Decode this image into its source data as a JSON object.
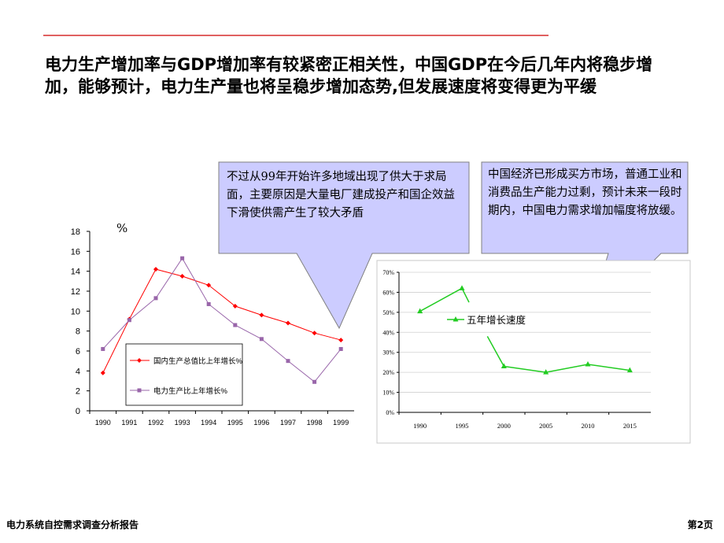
{
  "headline": "电力生产增加率与GDP增加率有较紧密正相关性，中国GDP在今后几年内将稳步增加，能够预计，电力生产量也将呈稳步增加态势,但发展速度将变得更为平缓",
  "callouts": [
    {
      "text": "不过从99年开始许多地域出现了供大于求局面，主要原因是大量电厂建成投产和国企效益下滑使供需产生了较大矛盾"
    },
    {
      "text": "中国经济已形成买方市场，普通工业和消费品生产能力过剩，预计未来一段时期内，中国电力需求增加幅度将放缓。"
    }
  ],
  "colors": {
    "red": "#ff0000",
    "purple": "#9966aa",
    "green": "#22cc22",
    "callout_fill": "#ccccff",
    "rule": "#e06060"
  },
  "footer": {
    "left": "电力系统自控需求调查分析报告",
    "right": "第2页"
  },
  "chart_data": [
    {
      "type": "line",
      "unit_label": "%",
      "categories": [
        "1990",
        "1991",
        "1992",
        "1993",
        "1994",
        "1995",
        "1996",
        "1997",
        "1998",
        "1999"
      ],
      "ylim": [
        0,
        18
      ],
      "yticks": [
        "0",
        "2",
        "4",
        "6",
        "8",
        "10",
        "12",
        "14",
        "16",
        "18"
      ],
      "series": [
        {
          "name": "国内生产总值比上年增长%",
          "values": [
            3.8,
            9.2,
            14.2,
            13.5,
            12.6,
            10.5,
            9.6,
            8.8,
            7.8,
            7.1
          ]
        },
        {
          "name": "电力生产比上年增长%",
          "values": [
            6.2,
            9.1,
            11.3,
            15.3,
            10.7,
            8.6,
            7.2,
            5.0,
            2.9,
            6.2
          ]
        }
      ],
      "legend": "inside, lower-right"
    },
    {
      "type": "line",
      "categories": [
        "1990",
        "1995",
        "2000",
        "2005",
        "2010",
        "2015"
      ],
      "ylim": [
        0,
        70
      ],
      "yticks": [
        "0%",
        "10%",
        "20%",
        "30%",
        "40%",
        "50%",
        "60%",
        "70%"
      ],
      "series": [
        {
          "name": "五年增长速度",
          "values": [
            50.5,
            62,
            23,
            20,
            24,
            21
          ]
        }
      ],
      "legend": "inside, center-left"
    }
  ]
}
